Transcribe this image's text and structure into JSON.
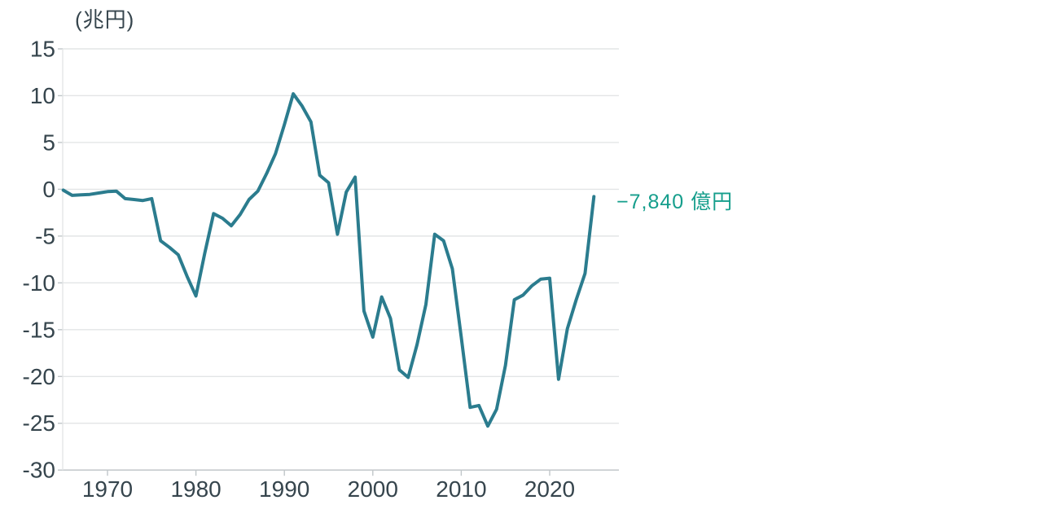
{
  "chart_data": {
    "type": "line",
    "title": "",
    "xlabel": "",
    "ylabel": "(兆円)",
    "unit": "兆円",
    "x": [
      1965,
      1966,
      1967,
      1968,
      1969,
      1970,
      1971,
      1972,
      1973,
      1974,
      1975,
      1976,
      1977,
      1978,
      1979,
      1980,
      1981,
      1982,
      1983,
      1984,
      1985,
      1986,
      1987,
      1988,
      1989,
      1990,
      1991,
      1992,
      1993,
      1994,
      1995,
      1996,
      1997,
      1998,
      1999,
      2000,
      2001,
      2002,
      2003,
      2004,
      2005,
      2006,
      2007,
      2008,
      2009,
      2010,
      2011,
      2012,
      2013,
      2014,
      2015,
      2016,
      2017,
      2018,
      2019,
      2020,
      2021,
      2022,
      2023,
      2024,
      2025
    ],
    "values": [
      -0.1,
      -0.65,
      -0.6,
      -0.55,
      -0.4,
      -0.25,
      -0.2,
      -1.0,
      -1.1,
      -1.2,
      -1.0,
      -5.5,
      -6.2,
      -7.0,
      -9.3,
      -11.4,
      -6.8,
      -2.6,
      -3.1,
      -3.9,
      -2.7,
      -1.1,
      -0.2,
      1.7,
      3.8,
      6.9,
      10.2,
      8.9,
      7.2,
      1.5,
      0.7,
      -4.8,
      -0.3,
      1.3,
      -13.0,
      -15.8,
      -11.5,
      -13.8,
      -19.3,
      -20.1,
      -16.6,
      -12.3,
      -4.8,
      -5.5,
      -8.5,
      -15.8,
      -23.3,
      -23.1,
      -25.3,
      -23.5,
      -18.8,
      -11.8,
      -11.3,
      -10.3,
      -9.6,
      -9.5,
      -20.3,
      -14.9,
      -11.8,
      -9.0,
      -0.784
    ],
    "ylim": [
      -30,
      15
    ],
    "xlim": [
      1965,
      2025
    ],
    "y_ticks": [
      15,
      10,
      5,
      0,
      -5,
      -10,
      -15,
      -20,
      -25,
      -30
    ],
    "x_ticks": [
      1970,
      1980,
      1990,
      2000,
      2010,
      2020
    ],
    "grid": "horizontal",
    "legend_position": "none",
    "end_label": "−7,840 億円",
    "colors": {
      "line": "#2b7c8e",
      "annotation": "#159e8c",
      "tick_label": "#36454d",
      "gridline": "#e3e5e6",
      "axis_line": "#c6cbce",
      "tick_mark": "#c0c6c9",
      "plot_border": "#e3e5e6",
      "background": "#ffffff"
    }
  }
}
